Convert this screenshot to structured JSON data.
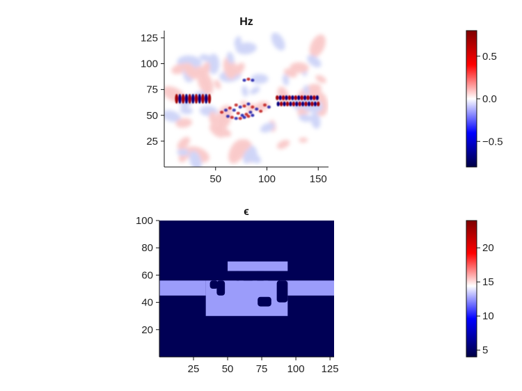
{
  "chart_data": [
    {
      "type": "heatmap",
      "title": "Hz",
      "xlim": [
        0,
        160
      ],
      "ylim": [
        0,
        132
      ],
      "xticks": [
        50,
        100,
        150
      ],
      "yticks": [
        25,
        50,
        75,
        100,
        125
      ],
      "colormap": "seismic",
      "colorbar": {
        "min": -0.8,
        "max": 0.8,
        "ticks": [
          -0.5,
          0.0,
          0.5
        ],
        "tick_labels": [
          "−0.5",
          "0.0",
          "0.5"
        ]
      },
      "features": [
        {
          "kind": "guided-mode-left",
          "x_range": [
            10,
            48
          ],
          "y_center": 66
        },
        {
          "kind": "guided-mode-right",
          "x_range": [
            108,
            152
          ],
          "y_center": 64
        },
        {
          "kind": "scattered-field",
          "x_range": [
            50,
            110
          ],
          "y_range": [
            45,
            85
          ]
        }
      ]
    },
    {
      "type": "heatmap",
      "title": "ϵ",
      "xlim": [
        0,
        128
      ],
      "ylim": [
        0,
        100
      ],
      "xticks": [
        25,
        50,
        75,
        100,
        125
      ],
      "yticks": [
        20,
        40,
        60,
        80,
        100
      ],
      "colormap": "seismic",
      "colorbar": {
        "min": 4,
        "max": 24,
        "ticks": [
          5,
          10,
          15,
          20
        ],
        "tick_labels": [
          "5",
          "10",
          "15",
          "20"
        ]
      },
      "background_value": 4,
      "material_value": 11,
      "regions": [
        {
          "name": "left-waveguide",
          "x": [
            0,
            34
          ],
          "y": [
            45,
            56
          ]
        },
        {
          "name": "right-waveguide",
          "x": [
            94,
            128
          ],
          "y": [
            45,
            56
          ]
        },
        {
          "name": "device-body",
          "x": [
            34,
            94
          ],
          "y": [
            30,
            56
          ]
        },
        {
          "name": "device-top",
          "x": [
            50,
            94
          ],
          "y": [
            63,
            70
          ]
        }
      ]
    }
  ],
  "colors": {
    "positive": "#990000",
    "negative": "#000050",
    "neutral": "#ffffff",
    "material": "#9b9cfa",
    "background": "#000055"
  }
}
